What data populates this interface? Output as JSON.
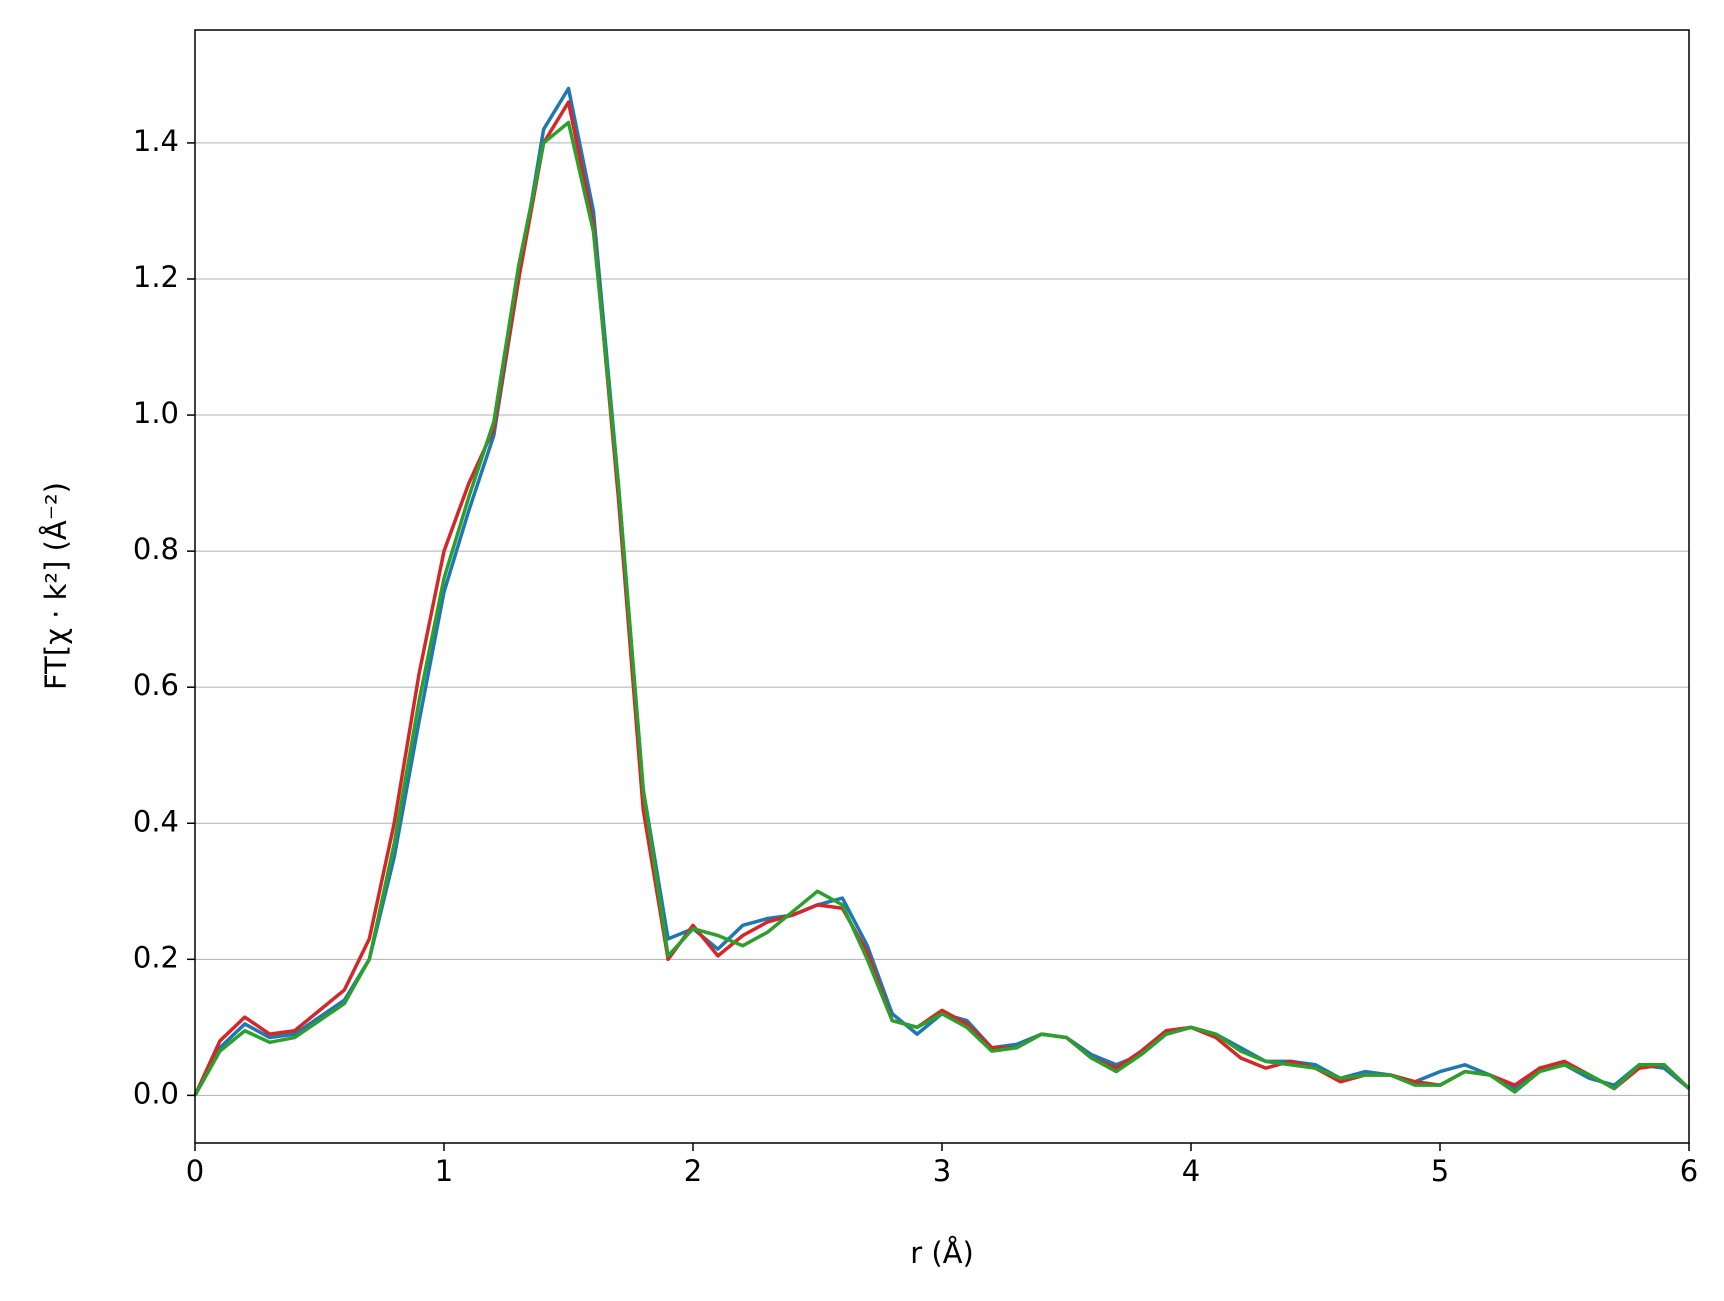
{
  "chart_data": {
    "type": "line",
    "xlabel": "r (Å)",
    "ylabel": "FT[χ · k²] (Å⁻²)",
    "x": [
      0,
      0.1,
      0.2,
      0.3,
      0.4,
      0.5,
      0.6,
      0.7,
      0.8,
      0.9,
      1,
      1.1,
      1.2,
      1.3,
      1.4,
      1.5,
      1.6,
      1.7,
      1.8,
      1.9,
      2,
      2.1,
      2.2,
      2.3,
      2.4,
      2.5,
      2.6,
      2.7,
      2.8,
      2.9,
      3,
      3.1,
      3.2,
      3.3,
      3.4,
      3.5,
      3.6,
      3.7,
      3.8,
      3.9,
      4,
      4.1,
      4.2,
      4.3,
      4.4,
      4.5,
      4.6,
      4.7,
      4.8,
      4.9,
      5,
      5.1,
      5.2,
      5.3,
      5.4,
      5.5,
      5.6,
      5.7,
      5.8,
      5.9,
      6
    ],
    "series": [
      {
        "color": "#1f77b4",
        "values": [
          0,
          0.07,
          0.105,
          0.085,
          0.09,
          0.115,
          0.14,
          0.2,
          0.35,
          0.55,
          0.74,
          0.86,
          0.97,
          1.2,
          1.42,
          1.48,
          1.3,
          0.9,
          0.45,
          0.23,
          0.245,
          0.215,
          0.25,
          0.26,
          0.265,
          0.28,
          0.29,
          0.22,
          0.12,
          0.09,
          0.12,
          0.11,
          0.07,
          0.075,
          0.09,
          0.085,
          0.06,
          0.045,
          0.06,
          0.09,
          0.1,
          0.09,
          0.07,
          0.05,
          0.05,
          0.045,
          0.025,
          0.035,
          0.03,
          0.02,
          0.035,
          0.045,
          0.03,
          0.01,
          0.04,
          0.045,
          0.025,
          0.015,
          0.045,
          0.04,
          0.01
        ]
      },
      {
        "color": "#d62728",
        "values": [
          0,
          0.08,
          0.115,
          0.09,
          0.095,
          0.125,
          0.155,
          0.23,
          0.4,
          0.62,
          0.8,
          0.9,
          0.98,
          1.2,
          1.4,
          1.46,
          1.28,
          0.88,
          0.42,
          0.2,
          0.25,
          0.205,
          0.235,
          0.255,
          0.265,
          0.28,
          0.275,
          0.21,
          0.11,
          0.1,
          0.125,
          0.105,
          0.07,
          0.07,
          0.09,
          0.085,
          0.055,
          0.04,
          0.065,
          0.095,
          0.1,
          0.085,
          0.055,
          0.04,
          0.05,
          0.04,
          0.02,
          0.03,
          0.03,
          0.02,
          0.015,
          0.035,
          0.03,
          0.015,
          0.04,
          0.05,
          0.03,
          0.01,
          0.04,
          0.045,
          0.01
        ]
      },
      {
        "color": "#2ca02c",
        "values": [
          0,
          0.065,
          0.095,
          0.078,
          0.085,
          0.11,
          0.135,
          0.2,
          0.37,
          0.58,
          0.76,
          0.88,
          0.99,
          1.22,
          1.4,
          1.43,
          1.27,
          0.9,
          0.45,
          0.205,
          0.245,
          0.235,
          0.22,
          0.24,
          0.27,
          0.3,
          0.28,
          0.2,
          0.11,
          0.1,
          0.12,
          0.1,
          0.065,
          0.07,
          0.09,
          0.085,
          0.055,
          0.035,
          0.06,
          0.09,
          0.1,
          0.09,
          0.065,
          0.05,
          0.045,
          0.04,
          0.025,
          0.03,
          0.03,
          0.015,
          0.015,
          0.035,
          0.03,
          0.005,
          0.035,
          0.045,
          0.03,
          0.01,
          0.045,
          0.045,
          0.01
        ]
      }
    ],
    "xlim": [
      0,
      6
    ],
    "xticks": [
      0,
      1,
      2,
      3,
      4,
      5,
      6
    ],
    "ylim": [
      -0.07,
      1.566
    ],
    "yticks": [
      {
        "value": 0,
        "label": "0.0"
      },
      0.2,
      0.4,
      0.6,
      0.8,
      {
        "value": 1,
        "label": "1.0"
      },
      1.2,
      1.4
    ],
    "grid": "y"
  }
}
